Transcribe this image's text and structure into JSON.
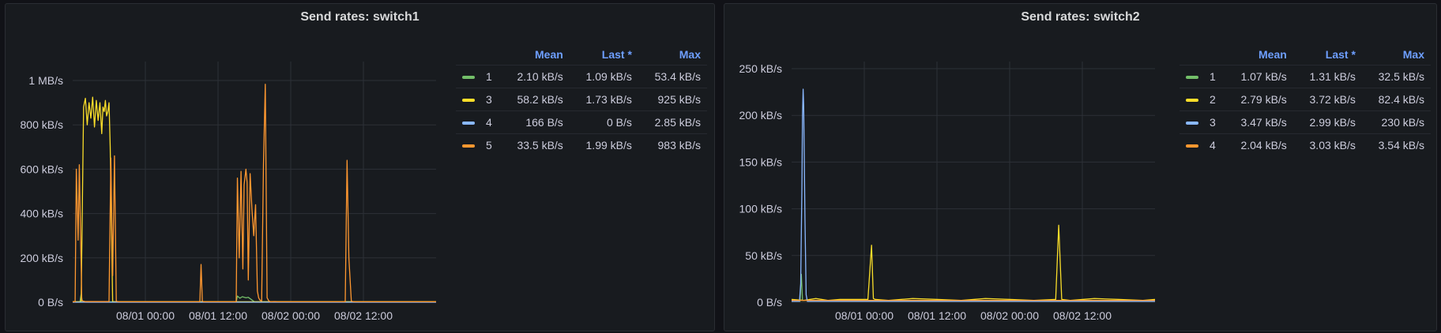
{
  "panels": [
    {
      "title": "Send rates: switch1",
      "y_ticks": [
        "0 B/s",
        "200 kB/s",
        "400 kB/s",
        "600 kB/s",
        "800 kB/s",
        "1 MB/s"
      ],
      "x_ticks": [
        "08/01 00:00",
        "08/01 12:00",
        "08/02 00:00",
        "08/02 12:00"
      ],
      "legend_headers": {
        "mean": "Mean",
        "last": "Last *",
        "max": "Max"
      },
      "legend": [
        {
          "name": "1",
          "color": "#73bf69",
          "mean": "2.10 kB/s",
          "last": "1.09 kB/s",
          "max": "53.4 kB/s"
        },
        {
          "name": "3",
          "color": "#fade2a",
          "mean": "58.2 kB/s",
          "last": "1.73 kB/s",
          "max": "925 kB/s"
        },
        {
          "name": "4",
          "color": "#8ab8ff",
          "mean": "166 B/s",
          "last": "0 B/s",
          "max": "2.85 kB/s"
        },
        {
          "name": "5",
          "color": "#ff9830",
          "mean": "33.5 kB/s",
          "last": "1.99 kB/s",
          "max": "983 kB/s"
        }
      ]
    },
    {
      "title": "Send rates: switch2",
      "y_ticks": [
        "0 B/s",
        "50 kB/s",
        "100 kB/s",
        "150 kB/s",
        "200 kB/s",
        "250 kB/s"
      ],
      "x_ticks": [
        "08/01 00:00",
        "08/01 12:00",
        "08/02 00:00",
        "08/02 12:00"
      ],
      "legend_headers": {
        "mean": "Mean",
        "last": "Last *",
        "max": "Max"
      },
      "legend": [
        {
          "name": "1",
          "color": "#73bf69",
          "mean": "1.07 kB/s",
          "last": "1.31 kB/s",
          "max": "32.5 kB/s"
        },
        {
          "name": "2",
          "color": "#fade2a",
          "mean": "2.79 kB/s",
          "last": "3.72 kB/s",
          "max": "82.4 kB/s"
        },
        {
          "name": "3",
          "color": "#8ab8ff",
          "mean": "3.47 kB/s",
          "last": "2.99 kB/s",
          "max": "230 kB/s"
        },
        {
          "name": "4",
          "color": "#ff9830",
          "mean": "2.04 kB/s",
          "last": "3.03 kB/s",
          "max": "3.54 kB/s"
        }
      ]
    }
  ],
  "chart_data": [
    {
      "type": "line",
      "title": "Send rates: switch1",
      "unit": "kB/s",
      "x_unit": "hours since 07/31 12:00",
      "xlim": [
        0,
        60
      ],
      "ylim": [
        0,
        1100
      ],
      "x_ticks": [
        {
          "x": 12,
          "label": "08/01 00:00"
        },
        {
          "x": 24,
          "label": "08/01 12:00"
        },
        {
          "x": 36,
          "label": "08/02 00:00"
        },
        {
          "x": 48,
          "label": "08/02 12:00"
        }
      ],
      "series": [
        {
          "name": "1",
          "color": "#73bf69",
          "x": [
            0,
            1.2,
            1.4,
            1.6,
            2.0,
            27.0,
            27.2,
            27.6,
            28.0,
            28.6,
            29.0,
            30.0,
            30.2,
            60
          ],
          "y": [
            2,
            2,
            35,
            3,
            2,
            2,
            28,
            18,
            25,
            20,
            22,
            2,
            2,
            2
          ]
        },
        {
          "name": "3",
          "color": "#fade2a",
          "x": [
            0,
            1.2,
            1.4,
            1.8,
            2.1,
            2.4,
            2.7,
            3.0,
            3.3,
            3.6,
            3.9,
            4.2,
            4.5,
            4.8,
            5.0,
            5.2,
            5.4,
            5.6,
            5.8,
            6.0,
            6.2,
            6.6,
            7.0,
            7.4,
            60
          ],
          "y": [
            2,
            2,
            3,
            880,
            920,
            800,
            900,
            830,
            925,
            790,
            910,
            820,
            900,
            760,
            880,
            860,
            910,
            840,
            860,
            900,
            700,
            3,
            2,
            2,
            2
          ]
        },
        {
          "name": "4",
          "color": "#8ab8ff",
          "x": [
            0,
            60
          ],
          "y": [
            0,
            0
          ]
        },
        {
          "name": "5",
          "color": "#ff9830",
          "x": [
            0,
            0.4,
            0.6,
            0.9,
            1.1,
            1.3,
            1.5,
            1.7,
            1.9,
            2.1,
            2.4,
            2.7,
            6.0,
            6.3,
            6.6,
            6.9,
            7.2,
            7.4,
            7.7,
            21.0,
            21.2,
            21.4,
            21.6,
            27.0,
            27.2,
            27.5,
            27.8,
            28.1,
            28.3,
            28.6,
            28.8,
            29.0,
            29.3,
            29.6,
            29.9,
            30.2,
            30.5,
            30.7,
            30.9,
            31.2,
            31.5,
            31.8,
            32.1,
            32.4,
            32.7,
            32.9,
            33.2,
            33.5,
            33.8,
            34.1,
            34.4,
            34.7,
            35.0,
            45.0,
            45.3,
            45.6,
            46.0,
            46.3,
            46.6,
            60
          ],
          "y": [
            2,
            2,
            600,
            280,
            620,
            300,
            10,
            5,
            4,
            3,
            3,
            3,
            3,
            650,
            120,
            660,
            5,
            3,
            2,
            2,
            170,
            5,
            2,
            2,
            560,
            200,
            590,
            150,
            530,
            600,
            540,
            100,
            580,
            420,
            300,
            440,
            50,
            20,
            10,
            5,
            620,
            983,
            20,
            5,
            2,
            2,
            3,
            3,
            2,
            2,
            2,
            2,
            2,
            2,
            640,
            200,
            5,
            3,
            2,
            2
          ]
        }
      ]
    },
    {
      "type": "line",
      "title": "Send rates: switch2",
      "unit": "kB/s",
      "x_unit": "hours since 07/31 12:00",
      "xlim": [
        0,
        60
      ],
      "ylim": [
        0,
        260
      ],
      "x_ticks": [
        {
          "x": 12,
          "label": "08/01 00:00"
        },
        {
          "x": 24,
          "label": "08/01 12:00"
        },
        {
          "x": 36,
          "label": "08/02 00:00"
        },
        {
          "x": 48,
          "label": "08/02 12:00"
        }
      ],
      "series": [
        {
          "name": "1",
          "color": "#73bf69",
          "x": [
            0,
            1.4,
            1.6,
            1.8,
            60
          ],
          "y": [
            1,
            1,
            30,
            2,
            1
          ]
        },
        {
          "name": "2",
          "color": "#fade2a",
          "x": [
            0,
            2,
            4,
            6,
            8,
            10,
            12.6,
            13.2,
            13.5,
            13.8,
            16,
            20,
            24,
            28,
            32,
            36,
            40,
            43.6,
            44.1,
            44.6,
            46,
            50,
            54,
            58,
            60
          ],
          "y": [
            3,
            2,
            4,
            2,
            3,
            3,
            3,
            61,
            4,
            3,
            2,
            4,
            3,
            2,
            4,
            3,
            2,
            3,
            82.4,
            3,
            2,
            4,
            3,
            2,
            3
          ]
        },
        {
          "name": "3",
          "color": "#8ab8ff",
          "x": [
            0,
            1.3,
            1.5,
            1.7,
            1.8,
            1.9,
            2.0,
            2.2,
            2.4,
            2.6,
            60
          ],
          "y": [
            1,
            1,
            20,
            120,
            200,
            228,
            210,
            90,
            8,
            1,
            1
          ]
        },
        {
          "name": "4",
          "color": "#ff9830",
          "x": [
            0,
            60
          ],
          "y": [
            2,
            2
          ]
        }
      ]
    }
  ]
}
